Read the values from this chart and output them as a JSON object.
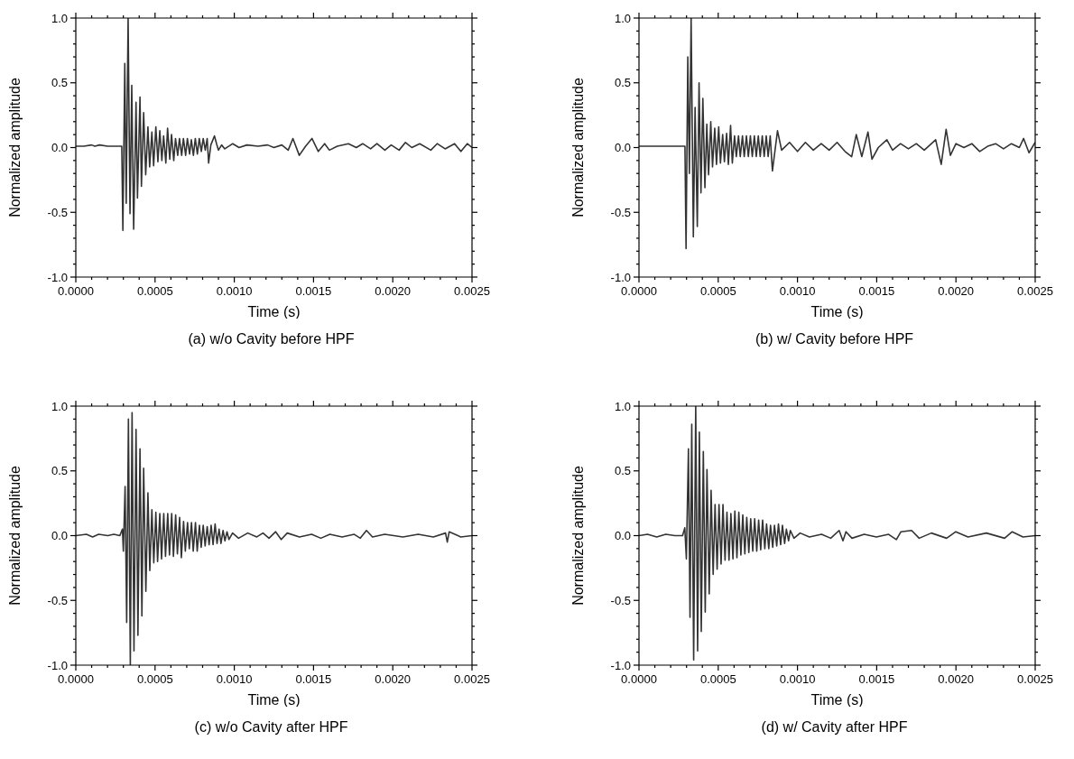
{
  "chart_data": [
    {
      "type": "line",
      "title": "(a) w/o Cavity before HPF",
      "xlabel": "Time (s)",
      "ylabel": "Normalized amplitude",
      "color": "#333333",
      "xlim": [
        0,
        0.0025
      ],
      "ylim": [
        -1,
        1
      ],
      "xticks": [
        {
          "value": 0,
          "label": "0.0000"
        },
        {
          "value": 0.0001,
          "label": null
        },
        {
          "value": 0.0002,
          "label": null
        },
        {
          "value": 0.0003,
          "label": null
        },
        {
          "value": 0.0004,
          "label": null
        },
        {
          "value": 0.0005,
          "label": "0.0005"
        },
        {
          "value": 0.0006,
          "label": null
        },
        {
          "value": 0.0007,
          "label": null
        },
        {
          "value": 0.0008,
          "label": null
        },
        {
          "value": 0.0009,
          "label": null
        },
        {
          "value": 0.001,
          "label": "0.0010"
        },
        {
          "value": 0.0011,
          "label": null
        },
        {
          "value": 0.0012,
          "label": null
        },
        {
          "value": 0.0013,
          "label": null
        },
        {
          "value": 0.0014,
          "label": null
        },
        {
          "value": 0.0015,
          "label": "0.0015"
        },
        {
          "value": 0.0016,
          "label": null
        },
        {
          "value": 0.0017,
          "label": null
        },
        {
          "value": 0.0018,
          "label": null
        },
        {
          "value": 0.0019,
          "label": null
        },
        {
          "value": 0.002,
          "label": "0.0020"
        },
        {
          "value": 0.0021,
          "label": null
        },
        {
          "value": 0.0022,
          "label": null
        },
        {
          "value": 0.0023,
          "label": null
        },
        {
          "value": 0.0024,
          "label": null
        },
        {
          "value": 0.0025,
          "label": "0.0025"
        }
      ],
      "yticks": [
        {
          "value": -1,
          "label": "-1.0"
        },
        {
          "value": -0.9,
          "label": null
        },
        {
          "value": -0.8,
          "label": null
        },
        {
          "value": -0.7,
          "label": null
        },
        {
          "value": -0.6,
          "label": null
        },
        {
          "value": -0.5,
          "label": "-0.5"
        },
        {
          "value": -0.4,
          "label": null
        },
        {
          "value": -0.3,
          "label": null
        },
        {
          "value": -0.2,
          "label": null
        },
        {
          "value": -0.1,
          "label": null
        },
        {
          "value": 0,
          "label": "0.0"
        },
        {
          "value": 0.1,
          "label": null
        },
        {
          "value": 0.2,
          "label": null
        },
        {
          "value": 0.3,
          "label": null
        },
        {
          "value": 0.4,
          "label": null
        },
        {
          "value": 0.5,
          "label": "0.5"
        },
        {
          "value": 0.6,
          "label": null
        },
        {
          "value": 0.7,
          "label": null
        },
        {
          "value": 0.8,
          "label": null
        },
        {
          "value": 0.9,
          "label": null
        },
        {
          "value": 1,
          "label": "1.0"
        }
      ],
      "x": [
        0,
        5e-05,
        0.0001,
        0.00012,
        0.00015,
        0.0002,
        0.00029,
        0.000297,
        0.000309,
        0.000318,
        0.00033,
        0.000342,
        0.000353,
        0.000365,
        0.00038,
        0.000389,
        0.000405,
        0.000414,
        0.000428,
        0.000441,
        0.000455,
        0.000466,
        0.00048,
        0.000491,
        0.000505,
        0.000518,
        0.00053,
        0.000543,
        0.000554,
        0.000568,
        0.000579,
        0.000593,
        0.000604,
        0.000618,
        0.000629,
        0.000643,
        0.000654,
        0.000668,
        0.000679,
        0.000693,
        0.000704,
        0.000718,
        0.000729,
        0.000742,
        0.000754,
        0.000767,
        0.000779,
        0.000792,
        0.000804,
        0.000817,
        0.000829,
        0.000838,
        0.000852,
        0.000875,
        0.000888,
        0.0009,
        0.00092,
        0.00094,
        0.00099,
        0.00103,
        0.00108,
        0.00115,
        0.00121,
        0.00125,
        0.0013,
        0.00134,
        0.00137,
        0.00141,
        0.00145,
        0.00149,
        0.00153,
        0.00157,
        0.0016,
        0.00165,
        0.00172,
        0.00177,
        0.00181,
        0.00186,
        0.0019,
        0.00195,
        0.00199,
        0.00204,
        0.00208,
        0.00212,
        0.00217,
        0.00224,
        0.00228,
        0.00233,
        0.00239,
        0.00243,
        0.00247,
        0.0025
      ],
      "values": [
        0.01,
        0.01,
        0.02,
        0.01,
        0.02,
        0.01,
        0.01,
        -0.64,
        0.65,
        -0.43,
        1.0,
        -0.51,
        0.48,
        -0.63,
        0.35,
        -0.39,
        0.39,
        -0.3,
        0.27,
        -0.21,
        0.16,
        -0.15,
        0.12,
        -0.14,
        0.16,
        -0.11,
        0.13,
        -0.1,
        0.09,
        -0.12,
        0.15,
        -0.09,
        0.1,
        -0.1,
        0.07,
        -0.06,
        0.07,
        -0.06,
        0.07,
        -0.06,
        0.07,
        -0.05,
        0.06,
        -0.06,
        0.07,
        -0.05,
        0.07,
        -0.03,
        0.07,
        -0.02,
        0.07,
        -0.12,
        0.02,
        0.09,
        0.03,
        -0.02,
        0.02,
        -0.01,
        0.03,
        0.0,
        0.02,
        0.01,
        0.02,
        0.0,
        0.02,
        -0.02,
        0.07,
        -0.06,
        0.01,
        0.07,
        -0.03,
        0.03,
        -0.02,
        0.01,
        0.03,
        0.0,
        0.03,
        -0.01,
        0.03,
        -0.02,
        0.02,
        -0.02,
        0.04,
        0.0,
        0.03,
        -0.02,
        0.03,
        -0.01,
        0.03,
        -0.03,
        0.03,
        0.0
      ]
    },
    {
      "type": "line",
      "title": "(b) w/ Cavity before HPF",
      "xlabel": "Time (s)",
      "ylabel": "Normalized amplitude",
      "color": "#333333",
      "xlim": [
        0,
        0.0025
      ],
      "ylim": [
        -1,
        1
      ],
      "xticks": [
        {
          "value": 0,
          "label": "0.0000"
        },
        {
          "value": 0.0001,
          "label": null
        },
        {
          "value": 0.0002,
          "label": null
        },
        {
          "value": 0.0003,
          "label": null
        },
        {
          "value": 0.0004,
          "label": null
        },
        {
          "value": 0.0005,
          "label": "0.0005"
        },
        {
          "value": 0.0006,
          "label": null
        },
        {
          "value": 0.0007,
          "label": null
        },
        {
          "value": 0.0008,
          "label": null
        },
        {
          "value": 0.0009,
          "label": null
        },
        {
          "value": 0.001,
          "label": "0.0010"
        },
        {
          "value": 0.0011,
          "label": null
        },
        {
          "value": 0.0012,
          "label": null
        },
        {
          "value": 0.0013,
          "label": null
        },
        {
          "value": 0.0014,
          "label": null
        },
        {
          "value": 0.0015,
          "label": "0.0015"
        },
        {
          "value": 0.0016,
          "label": null
        },
        {
          "value": 0.0017,
          "label": null
        },
        {
          "value": 0.0018,
          "label": null
        },
        {
          "value": 0.0019,
          "label": null
        },
        {
          "value": 0.002,
          "label": "0.0020"
        },
        {
          "value": 0.0021,
          "label": null
        },
        {
          "value": 0.0022,
          "label": null
        },
        {
          "value": 0.0023,
          "label": null
        },
        {
          "value": 0.0024,
          "label": null
        },
        {
          "value": 0.0025,
          "label": "0.0025"
        }
      ],
      "yticks": [
        {
          "value": -1,
          "label": "-1.0"
        },
        {
          "value": -0.9,
          "label": null
        },
        {
          "value": -0.8,
          "label": null
        },
        {
          "value": -0.7,
          "label": null
        },
        {
          "value": -0.6,
          "label": null
        },
        {
          "value": -0.5,
          "label": "-0.5"
        },
        {
          "value": -0.4,
          "label": null
        },
        {
          "value": -0.3,
          "label": null
        },
        {
          "value": -0.2,
          "label": null
        },
        {
          "value": -0.1,
          "label": null
        },
        {
          "value": 0,
          "label": "0.0"
        },
        {
          "value": 0.1,
          "label": null
        },
        {
          "value": 0.2,
          "label": null
        },
        {
          "value": 0.3,
          "label": null
        },
        {
          "value": 0.4,
          "label": null
        },
        {
          "value": 0.5,
          "label": "0.5"
        },
        {
          "value": 0.6,
          "label": null
        },
        {
          "value": 0.7,
          "label": null
        },
        {
          "value": 0.8,
          "label": null
        },
        {
          "value": 0.9,
          "label": null
        },
        {
          "value": 1,
          "label": "1.0"
        }
      ],
      "x": [
        0,
        5e-05,
        0.0001,
        0.00015,
        0.0002,
        0.00025,
        0.00029,
        0.000297,
        0.000308,
        0.000318,
        0.000329,
        0.000343,
        0.000354,
        0.000368,
        0.000379,
        0.000391,
        0.000403,
        0.000416,
        0.000428,
        0.000439,
        0.000453,
        0.000464,
        0.000478,
        0.000489,
        0.000503,
        0.000514,
        0.000528,
        0.000539,
        0.000553,
        0.000564,
        0.000578,
        0.000589,
        0.000603,
        0.000614,
        0.000628,
        0.000639,
        0.000653,
        0.000664,
        0.000678,
        0.00069,
        0.000703,
        0.000715,
        0.000728,
        0.00074,
        0.000753,
        0.000765,
        0.000778,
        0.00079,
        0.000803,
        0.000815,
        0.000828,
        0.000842,
        0.000874,
        0.0009,
        0.00095,
        0.001,
        0.00105,
        0.0011,
        0.00115,
        0.0012,
        0.00125,
        0.0013,
        0.001342,
        0.001371,
        0.001406,
        0.001445,
        0.00147,
        0.00151,
        0.001564,
        0.0016,
        0.00165,
        0.0017,
        0.00175,
        0.0018,
        0.001872,
        0.001907,
        0.001938,
        0.001965,
        0.002,
        0.00205,
        0.0021,
        0.00215,
        0.0022,
        0.00225,
        0.0023,
        0.00235,
        0.0024,
        0.002427,
        0.002461,
        0.0025
      ],
      "values": [
        0.01,
        0.01,
        0.01,
        0.01,
        0.01,
        0.01,
        0.01,
        -0.78,
        0.7,
        -0.2,
        1.0,
        -0.69,
        0.31,
        -0.61,
        0.5,
        -0.35,
        0.38,
        -0.31,
        0.18,
        -0.21,
        0.2,
        -0.15,
        0.15,
        -0.13,
        0.16,
        -0.12,
        0.1,
        -0.11,
        0.11,
        -0.13,
        0.17,
        -0.12,
        0.09,
        -0.07,
        0.09,
        -0.07,
        0.09,
        -0.07,
        0.09,
        -0.07,
        0.09,
        -0.07,
        0.09,
        -0.07,
        0.09,
        -0.07,
        0.09,
        -0.07,
        0.09,
        -0.07,
        0.09,
        -0.18,
        0.13,
        -0.02,
        0.04,
        -0.03,
        0.04,
        -0.02,
        0.03,
        -0.02,
        0.04,
        -0.03,
        -0.07,
        0.1,
        -0.07,
        0.12,
        -0.09,
        0.0,
        0.06,
        -0.02,
        0.03,
        -0.01,
        0.03,
        -0.02,
        0.06,
        -0.13,
        0.14,
        -0.06,
        0.03,
        0.0,
        0.03,
        -0.03,
        0.01,
        0.03,
        -0.01,
        0.03,
        0.0,
        0.07,
        -0.04,
        0.04
      ]
    },
    {
      "type": "line",
      "title": "(c) w/o Cavity after HPF",
      "xlabel": "Time (s)",
      "ylabel": "Normalized amplitude",
      "color": "#333333",
      "xlim": [
        0,
        0.0025
      ],
      "ylim": [
        -1,
        1
      ],
      "xticks": [
        {
          "value": 0,
          "label": "0.0000"
        },
        {
          "value": 0.0001,
          "label": null
        },
        {
          "value": 0.0002,
          "label": null
        },
        {
          "value": 0.0003,
          "label": null
        },
        {
          "value": 0.0004,
          "label": null
        },
        {
          "value": 0.0005,
          "label": "0.0005"
        },
        {
          "value": 0.0006,
          "label": null
        },
        {
          "value": 0.0007,
          "label": null
        },
        {
          "value": 0.0008,
          "label": null
        },
        {
          "value": 0.0009,
          "label": null
        },
        {
          "value": 0.001,
          "label": "0.0010"
        },
        {
          "value": 0.0011,
          "label": null
        },
        {
          "value": 0.0012,
          "label": null
        },
        {
          "value": 0.0013,
          "label": null
        },
        {
          "value": 0.0014,
          "label": null
        },
        {
          "value": 0.0015,
          "label": "0.0015"
        },
        {
          "value": 0.0016,
          "label": null
        },
        {
          "value": 0.0017,
          "label": null
        },
        {
          "value": 0.0018,
          "label": null
        },
        {
          "value": 0.0019,
          "label": null
        },
        {
          "value": 0.002,
          "label": "0.0020"
        },
        {
          "value": 0.0021,
          "label": null
        },
        {
          "value": 0.0022,
          "label": null
        },
        {
          "value": 0.0023,
          "label": null
        },
        {
          "value": 0.0024,
          "label": null
        },
        {
          "value": 0.0025,
          "label": "0.0025"
        }
      ],
      "yticks": [
        {
          "value": -1,
          "label": "-1.0"
        },
        {
          "value": -0.9,
          "label": null
        },
        {
          "value": -0.8,
          "label": null
        },
        {
          "value": -0.7,
          "label": null
        },
        {
          "value": -0.6,
          "label": null
        },
        {
          "value": -0.5,
          "label": "-0.5"
        },
        {
          "value": -0.4,
          "label": null
        },
        {
          "value": -0.3,
          "label": null
        },
        {
          "value": -0.2,
          "label": null
        },
        {
          "value": -0.1,
          "label": null
        },
        {
          "value": 0,
          "label": "0.0"
        },
        {
          "value": 0.1,
          "label": null
        },
        {
          "value": 0.2,
          "label": null
        },
        {
          "value": 0.3,
          "label": null
        },
        {
          "value": 0.4,
          "label": null
        },
        {
          "value": 0.5,
          "label": "0.5"
        },
        {
          "value": 0.6,
          "label": null
        },
        {
          "value": 0.7,
          "label": null
        },
        {
          "value": 0.8,
          "label": null
        },
        {
          "value": 0.9,
          "label": null
        },
        {
          "value": 1,
          "label": "1.0"
        }
      ],
      "x": [
        0,
        6.7e-05,
        0.000106,
        0.000144,
        0.000202,
        0.00024,
        0.000278,
        0.000294,
        0.0003,
        0.000311,
        0.000321,
        0.000332,
        0.000344,
        0.000355,
        0.000367,
        0.00038,
        0.000392,
        0.000405,
        0.000417,
        0.000428,
        0.000442,
        0.000455,
        0.000467,
        0.00048,
        0.000492,
        0.000505,
        0.000516,
        0.00053,
        0.000541,
        0.000555,
        0.000566,
        0.00058,
        0.000591,
        0.000605,
        0.000616,
        0.00063,
        0.000641,
        0.000655,
        0.000666,
        0.00068,
        0.000691,
        0.000705,
        0.000716,
        0.00073,
        0.000741,
        0.000755,
        0.000766,
        0.00078,
        0.000791,
        0.000804,
        0.000816,
        0.000829,
        0.000841,
        0.000854,
        0.000866,
        0.000879,
        0.000891,
        0.000904,
        0.000916,
        0.000929,
        0.000941,
        0.000954,
        0.000966,
        0.000989,
        0.001027,
        0.001085,
        0.001142,
        0.001181,
        0.001219,
        0.001261,
        0.001296,
        0.001334,
        0.001411,
        0.001488,
        0.001546,
        0.001603,
        0.00168,
        0.001757,
        0.001795,
        0.001834,
        0.001872,
        0.001949,
        0.002064,
        0.00216,
        0.002256,
        0.002333,
        0.002344,
        0.002356,
        0.002429,
        0.0025
      ],
      "values": [
        0.0,
        0.01,
        -0.01,
        0.01,
        0.0,
        0.01,
        0.0,
        0.05,
        -0.12,
        0.38,
        -0.67,
        0.9,
        -1.0,
        0.95,
        -0.89,
        0.82,
        -0.77,
        0.67,
        -0.62,
        0.52,
        -0.43,
        0.33,
        -0.27,
        0.2,
        -0.21,
        0.18,
        -0.2,
        0.17,
        -0.18,
        0.17,
        -0.16,
        0.17,
        -0.15,
        0.17,
        -0.16,
        0.16,
        -0.14,
        0.14,
        -0.17,
        0.11,
        -0.12,
        0.1,
        -0.1,
        0.1,
        -0.12,
        0.1,
        -0.12,
        0.08,
        -0.09,
        0.08,
        -0.08,
        0.07,
        -0.07,
        0.08,
        -0.07,
        0.09,
        -0.06,
        0.05,
        -0.06,
        0.04,
        -0.04,
        0.03,
        -0.03,
        0.02,
        -0.02,
        0.02,
        -0.01,
        0.02,
        -0.02,
        0.03,
        -0.03,
        0.02,
        -0.01,
        0.01,
        -0.02,
        0.01,
        -0.01,
        0.01,
        -0.02,
        0.04,
        -0.01,
        0.01,
        -0.01,
        0.01,
        -0.01,
        0.02,
        -0.05,
        0.03,
        -0.01,
        0.0
      ]
    },
    {
      "type": "line",
      "title": "(d) w/ Cavity after HPF",
      "xlabel": "Time (s)",
      "ylabel": "Normalized amplitude",
      "color": "#333333",
      "xlim": [
        0,
        0.0025
      ],
      "ylim": [
        -1,
        1
      ],
      "xticks": [
        {
          "value": 0,
          "label": "0.0000"
        },
        {
          "value": 0.0001,
          "label": null
        },
        {
          "value": 0.0002,
          "label": null
        },
        {
          "value": 0.0003,
          "label": null
        },
        {
          "value": 0.0004,
          "label": null
        },
        {
          "value": 0.0005,
          "label": "0.0005"
        },
        {
          "value": 0.0006,
          "label": null
        },
        {
          "value": 0.0007,
          "label": null
        },
        {
          "value": 0.0008,
          "label": null
        },
        {
          "value": 0.0009,
          "label": null
        },
        {
          "value": 0.001,
          "label": "0.0010"
        },
        {
          "value": 0.0011,
          "label": null
        },
        {
          "value": 0.0012,
          "label": null
        },
        {
          "value": 0.0013,
          "label": null
        },
        {
          "value": 0.0014,
          "label": null
        },
        {
          "value": 0.0015,
          "label": "0.0015"
        },
        {
          "value": 0.0016,
          "label": null
        },
        {
          "value": 0.0017,
          "label": null
        },
        {
          "value": 0.0018,
          "label": null
        },
        {
          "value": 0.0019,
          "label": null
        },
        {
          "value": 0.002,
          "label": "0.0020"
        },
        {
          "value": 0.0021,
          "label": null
        },
        {
          "value": 0.0022,
          "label": null
        },
        {
          "value": 0.0023,
          "label": null
        },
        {
          "value": 0.0024,
          "label": null
        },
        {
          "value": 0.0025,
          "label": "0.0025"
        }
      ],
      "yticks": [
        {
          "value": -1,
          "label": "-1.0"
        },
        {
          "value": -0.9,
          "label": null
        },
        {
          "value": -0.8,
          "label": null
        },
        {
          "value": -0.7,
          "label": null
        },
        {
          "value": -0.6,
          "label": null
        },
        {
          "value": -0.5,
          "label": "-0.5"
        },
        {
          "value": -0.4,
          "label": null
        },
        {
          "value": -0.3,
          "label": null
        },
        {
          "value": -0.2,
          "label": null
        },
        {
          "value": -0.1,
          "label": null
        },
        {
          "value": 0,
          "label": "0.0"
        },
        {
          "value": 0.1,
          "label": null
        },
        {
          "value": 0.2,
          "label": null
        },
        {
          "value": 0.3,
          "label": null
        },
        {
          "value": 0.4,
          "label": null
        },
        {
          "value": 0.5,
          "label": "0.5"
        },
        {
          "value": 0.6,
          "label": null
        },
        {
          "value": 0.7,
          "label": null
        },
        {
          "value": 0.8,
          "label": null
        },
        {
          "value": 0.9,
          "label": null
        },
        {
          "value": 1,
          "label": "1.0"
        }
      ],
      "x": [
        0,
        5.4e-05,
        0.000112,
        0.000169,
        0.000227,
        0.000275,
        0.000289,
        0.000299,
        0.000312,
        0.000322,
        0.000333,
        0.000345,
        0.000358,
        0.00037,
        0.000381,
        0.000393,
        0.000406,
        0.000418,
        0.000429,
        0.000443,
        0.000455,
        0.000468,
        0.00048,
        0.000493,
        0.000505,
        0.000518,
        0.00053,
        0.000543,
        0.000555,
        0.000568,
        0.00058,
        0.000593,
        0.000605,
        0.000618,
        0.00063,
        0.000643,
        0.000655,
        0.000668,
        0.00068,
        0.000693,
        0.000705,
        0.000718,
        0.00073,
        0.000743,
        0.000755,
        0.000768,
        0.00078,
        0.000794,
        0.000805,
        0.000819,
        0.00083,
        0.000844,
        0.000855,
        0.000869,
        0.00088,
        0.000894,
        0.000905,
        0.000919,
        0.00093,
        0.000944,
        0.000955,
        0.000978,
        0.001017,
        0.001075,
        0.001152,
        0.00121,
        0.001263,
        0.001287,
        0.001306,
        0.001344,
        0.001421,
        0.001498,
        0.001575,
        0.001624,
        0.001653,
        0.00172,
        0.001768,
        0.001845,
        0.001941,
        0.001999,
        0.002076,
        0.002192,
        0.002307,
        0.002355,
        0.002423,
        0.0025
      ],
      "values": [
        0.0,
        0.01,
        -0.01,
        0.01,
        0.0,
        0.0,
        0.06,
        -0.18,
        0.67,
        -0.63,
        0.86,
        -0.96,
        1.0,
        -0.89,
        0.8,
        -0.74,
        0.65,
        -0.59,
        0.51,
        -0.45,
        0.35,
        -0.3,
        0.24,
        -0.26,
        0.24,
        -0.22,
        0.24,
        -0.19,
        0.18,
        -0.19,
        0.17,
        -0.18,
        0.19,
        -0.17,
        0.18,
        -0.15,
        0.16,
        -0.14,
        0.14,
        -0.13,
        0.13,
        -0.12,
        0.13,
        -0.12,
        0.12,
        -0.11,
        0.12,
        -0.1,
        0.09,
        -0.1,
        0.08,
        -0.09,
        0.08,
        -0.08,
        0.09,
        -0.07,
        0.08,
        -0.06,
        0.05,
        -0.04,
        0.04,
        -0.02,
        0.02,
        -0.01,
        0.01,
        -0.02,
        0.04,
        -0.04,
        0.03,
        -0.02,
        0.01,
        -0.01,
        0.01,
        -0.03,
        0.03,
        0.04,
        -0.02,
        0.02,
        -0.02,
        0.03,
        -0.01,
        0.02,
        -0.02,
        0.03,
        -0.01,
        0.0
      ]
    }
  ]
}
